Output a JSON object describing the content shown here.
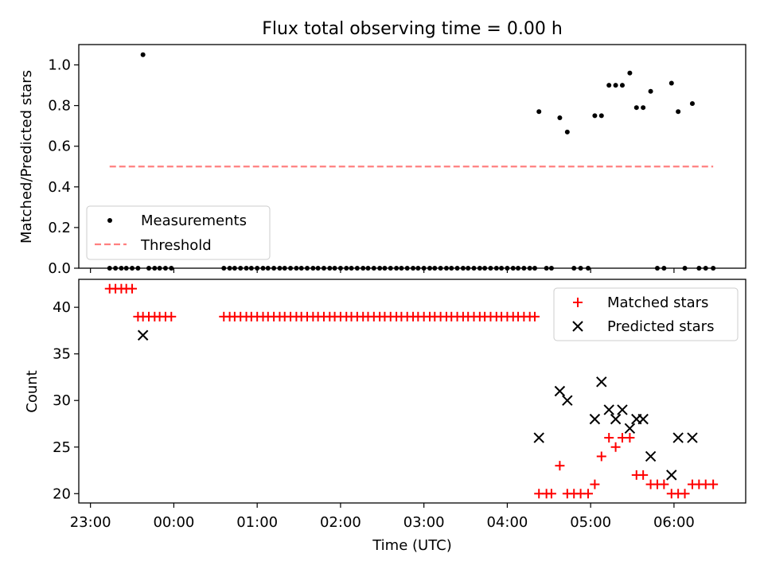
{
  "figure_title": "Flux total observing time = 0.00 h",
  "xlabel": "Time (UTC)",
  "x_tick_labels": [
    "23:00",
    "00:00",
    "01:00",
    "02:00",
    "03:00",
    "04:00",
    "05:00",
    "06:00"
  ],
  "x_tick_hours": [
    -1,
    0,
    1,
    2,
    3,
    4,
    5,
    6
  ],
  "colors": {
    "measurements": "#000000",
    "threshold": "#ff8080",
    "matched": "#ff0000",
    "predicted": "#000000"
  },
  "chart_data": [
    {
      "type": "scatter",
      "ylabel": "Matched/Predicted stars",
      "ylim": [
        0,
        1.1
      ],
      "yticks": [
        0.0,
        0.2,
        0.4,
        0.6,
        0.8,
        1.0
      ],
      "ytick_labels": [
        "0.0",
        "0.2",
        "0.4",
        "0.6",
        "0.8",
        "1.0"
      ],
      "grid": false,
      "legend_position": "lower-left",
      "series": [
        {
          "name": "Measurements",
          "marker": "dot",
          "x_hours_utc": [
            -0.77,
            -0.7,
            -0.63,
            -0.57,
            -0.5,
            -0.43,
            -0.37,
            -0.3,
            -0.23,
            -0.17,
            -0.1,
            -0.03,
            0.6,
            0.67,
            0.73,
            0.8,
            0.87,
            0.93,
            1.0,
            1.07,
            1.13,
            1.2,
            1.27,
            1.33,
            1.4,
            1.47,
            1.53,
            1.6,
            1.67,
            1.73,
            1.8,
            1.87,
            1.93,
            2.0,
            2.07,
            2.13,
            2.2,
            2.27,
            2.33,
            2.4,
            2.47,
            2.53,
            2.6,
            2.67,
            2.73,
            2.8,
            2.87,
            2.93,
            3.0,
            3.07,
            3.13,
            3.2,
            3.27,
            3.33,
            3.4,
            3.47,
            3.53,
            3.6,
            3.67,
            3.73,
            3.8,
            3.87,
            3.93,
            4.0,
            4.07,
            4.13,
            4.2,
            4.27,
            4.33,
            4.38,
            4.47,
            4.53,
            4.63,
            4.72,
            4.8,
            4.88,
            4.97,
            5.05,
            5.13,
            5.22,
            5.3,
            5.38,
            5.47,
            5.55,
            5.63,
            5.72,
            5.8,
            5.88,
            5.97,
            6.05,
            6.13,
            6.22,
            6.3,
            6.38,
            6.47
          ],
          "y": [
            0,
            0,
            0,
            0,
            0,
            0,
            1.05,
            0,
            0,
            0,
            0,
            0,
            0,
            0,
            0,
            0,
            0,
            0,
            0,
            0,
            0,
            0,
            0,
            0,
            0,
            0,
            0,
            0,
            0,
            0,
            0,
            0,
            0,
            0,
            0,
            0,
            0,
            0,
            0,
            0,
            0,
            0,
            0,
            0,
            0,
            0,
            0,
            0,
            0,
            0,
            0,
            0,
            0,
            0,
            0,
            0,
            0,
            0,
            0,
            0,
            0,
            0,
            0,
            0,
            0,
            0,
            0,
            0,
            0,
            0.77,
            0,
            0,
            0.74,
            0.67,
            0,
            0,
            0,
            0.75,
            0.75,
            0.9,
            0.9,
            0.9,
            0.96,
            0.79,
            0.79,
            0.87,
            0,
            0,
            0.91,
            0.77,
            0,
            0.81,
            0,
            0,
            0
          ]
        },
        {
          "name": "Threshold",
          "style": "dashed",
          "x_hours_utc": [
            -0.77,
            6.47
          ],
          "y": [
            0.5,
            0.5
          ]
        }
      ]
    },
    {
      "type": "scatter",
      "ylabel": "Count",
      "ylim": [
        19,
        43
      ],
      "yticks": [
        20,
        25,
        30,
        35,
        40
      ],
      "ytick_labels": [
        "20",
        "25",
        "30",
        "35",
        "40"
      ],
      "grid": false,
      "legend_position": "top-right",
      "series": [
        {
          "name": "Matched stars",
          "marker": "plus",
          "x_hours_utc": [
            -0.77,
            -0.7,
            -0.63,
            -0.57,
            -0.5,
            -0.43,
            -0.37,
            -0.3,
            -0.23,
            -0.17,
            -0.1,
            -0.03,
            0.6,
            0.67,
            0.73,
            0.8,
            0.87,
            0.93,
            1.0,
            1.07,
            1.13,
            1.2,
            1.27,
            1.33,
            1.4,
            1.47,
            1.53,
            1.6,
            1.67,
            1.73,
            1.8,
            1.87,
            1.93,
            2.0,
            2.07,
            2.13,
            2.2,
            2.27,
            2.33,
            2.4,
            2.47,
            2.53,
            2.6,
            2.67,
            2.73,
            2.8,
            2.87,
            2.93,
            3.0,
            3.07,
            3.13,
            3.2,
            3.27,
            3.33,
            3.4,
            3.47,
            3.53,
            3.6,
            3.67,
            3.73,
            3.8,
            3.87,
            3.93,
            4.0,
            4.07,
            4.13,
            4.2,
            4.27,
            4.33,
            4.38,
            4.47,
            4.53,
            4.63,
            4.72,
            4.8,
            4.88,
            4.97,
            5.05,
            5.13,
            5.22,
            5.3,
            5.38,
            5.47,
            5.55,
            5.63,
            5.72,
            5.8,
            5.88,
            5.97,
            6.05,
            6.13,
            6.22,
            6.3,
            6.38,
            6.47
          ],
          "y": [
            42,
            42,
            42,
            42,
            42,
            39,
            39,
            39,
            39,
            39,
            39,
            39,
            39,
            39,
            39,
            39,
            39,
            39,
            39,
            39,
            39,
            39,
            39,
            39,
            39,
            39,
            39,
            39,
            39,
            39,
            39,
            39,
            39,
            39,
            39,
            39,
            39,
            39,
            39,
            39,
            39,
            39,
            39,
            39,
            39,
            39,
            39,
            39,
            39,
            39,
            39,
            39,
            39,
            39,
            39,
            39,
            39,
            39,
            39,
            39,
            39,
            39,
            39,
            39,
            39,
            39,
            39,
            39,
            39,
            20,
            20,
            20,
            23,
            20,
            20,
            20,
            20,
            21,
            24,
            26,
            25,
            26,
            26,
            22,
            22,
            21,
            21,
            21,
            20,
            20,
            20,
            21,
            21,
            21,
            21
          ]
        },
        {
          "name": "Predicted stars",
          "marker": "x",
          "x_hours_utc": [
            -0.37,
            4.38,
            4.63,
            4.72,
            5.05,
            5.13,
            5.22,
            5.3,
            5.38,
            5.47,
            5.55,
            5.63,
            5.72,
            5.97,
            6.05,
            6.22
          ],
          "y": [
            37,
            26,
            31,
            30,
            28,
            32,
            29,
            28,
            29,
            27,
            28,
            28,
            24,
            22,
            26,
            26
          ]
        }
      ]
    }
  ]
}
